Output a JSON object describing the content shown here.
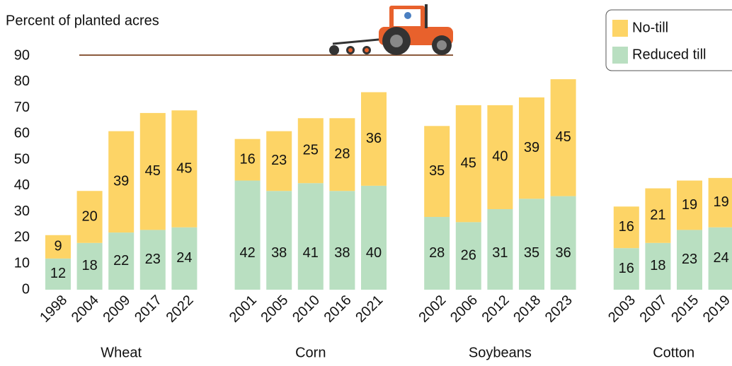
{
  "chart_data": {
    "type": "stacked-bar",
    "y_label": "Percent of planted acres",
    "groups": [
      "Wheat",
      "Corn",
      "Soybeans",
      "Cotton"
    ],
    "categories": [
      [
        "1998",
        "2004",
        "2009",
        "2017",
        "2022"
      ],
      [
        "2001",
        "2005",
        "2010",
        "2016",
        "2021"
      ],
      [
        "2002",
        "2006",
        "2012",
        "2018",
        "2023"
      ],
      [
        "2003",
        "2007",
        "2015",
        "2019"
      ]
    ],
    "series": [
      {
        "name": "Reduced till",
        "color": "#b9dfc1",
        "values": [
          [
            12,
            18,
            22,
            23,
            24
          ],
          [
            42,
            38,
            41,
            38,
            40
          ],
          [
            28,
            26,
            31,
            35,
            36
          ],
          [
            16,
            18,
            23,
            24
          ]
        ]
      },
      {
        "name": "No-till",
        "color": "#fdd466",
        "values": [
          [
            9,
            20,
            39,
            45,
            45
          ],
          [
            16,
            23,
            25,
            28,
            36
          ],
          [
            35,
            45,
            40,
            39,
            45
          ],
          [
            16,
            21,
            19,
            19
          ]
        ]
      }
    ],
    "ylim": [
      0,
      90
    ],
    "yticks": [
      0,
      10,
      20,
      30,
      40,
      50,
      60,
      70,
      80,
      90
    ],
    "grid": false,
    "legend": "top-right"
  }
}
